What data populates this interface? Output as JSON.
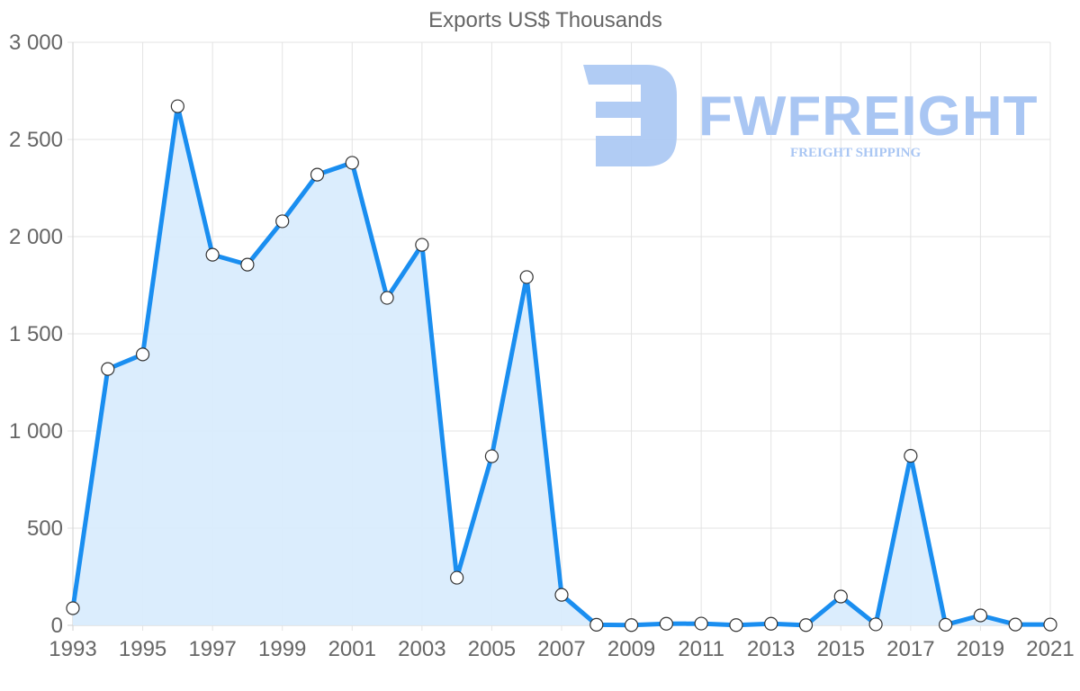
{
  "chart_data": {
    "type": "area",
    "title": "Exports US$ Thousands",
    "xlabel": "",
    "ylabel": "",
    "ylim": [
      0,
      3000
    ],
    "yticks": [
      0,
      500,
      1000,
      1500,
      2000,
      2500,
      3000
    ],
    "ytick_labels": [
      "0",
      "500",
      "1 000",
      "1 500",
      "2 000",
      "2 500",
      "3 000"
    ],
    "xtick_labels": [
      "1993",
      "1995",
      "1997",
      "1999",
      "2001",
      "2003",
      "2005",
      "2007",
      "2009",
      "2011",
      "2013",
      "2015",
      "2017",
      "2019",
      "2021"
    ],
    "grid": true,
    "legend": null,
    "categories": [
      "1993",
      "1994",
      "1995",
      "1996",
      "1997",
      "1998",
      "1999",
      "2000",
      "2001",
      "2002",
      "2003",
      "2004",
      "2005",
      "2006",
      "2007",
      "2008",
      "2009",
      "2010",
      "2011",
      "2012",
      "2013",
      "2014",
      "2015",
      "2016",
      "2017",
      "2018",
      "2019",
      "2020",
      "2021"
    ],
    "series": [
      {
        "name": "Exports US$ Thousands",
        "values": [
          88,
          1319,
          1394,
          2671,
          1907,
          1856,
          2079,
          2319,
          2380,
          1685,
          1958,
          245,
          870,
          1792,
          157,
          3,
          1,
          8,
          9,
          1,
          8,
          1,
          148,
          5,
          872,
          3,
          51,
          4,
          4
        ]
      }
    ],
    "colors": {
      "line": "#1a8ef0",
      "fill": "#d9ecfd",
      "point_fill": "#ffffff",
      "point_stroke": "#333333"
    }
  },
  "watermark": {
    "brand": "FWFREIGHT",
    "tagline": "FREIGHT SHIPPING",
    "color": "#a9c6f3"
  }
}
